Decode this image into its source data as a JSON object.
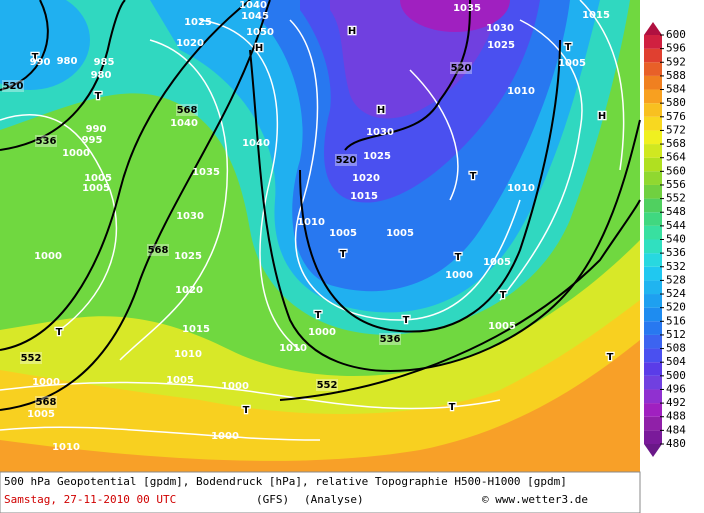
{
  "legend": {
    "ticks": [
      600,
      596,
      592,
      588,
      584,
      580,
      576,
      572,
      568,
      564,
      560,
      556,
      552,
      548,
      544,
      540,
      536,
      532,
      528,
      524,
      520,
      516,
      512,
      508,
      504,
      500,
      496,
      492,
      488,
      484,
      480
    ],
    "colors": [
      "#7a1a9a",
      "#9020a8",
      "#a020c0",
      "#9030d0",
      "#7040e0",
      "#5a3ce8",
      "#4a50f0",
      "#3c64f0",
      "#2878f0",
      "#1e8cf0",
      "#1ea0f0",
      "#20b4f0",
      "#20c8f0",
      "#28d8e0",
      "#30e0c0",
      "#38e0a0",
      "#40d880",
      "#50d060",
      "#70d040",
      "#90d830",
      "#b0e020",
      "#d0e820",
      "#f0f020",
      "#f8d820",
      "#f8c020",
      "#f8a020",
      "#f08020",
      "#e86028",
      "#e04030",
      "#d02040"
    ]
  },
  "map_labels": [
    "H",
    "H",
    "H",
    "H",
    "T",
    "T",
    "T",
    "T",
    "T",
    "T",
    "T",
    "T",
    "T",
    "T",
    "T",
    "T",
    "T",
    "520",
    "536",
    "568",
    "568",
    "520",
    "520",
    "536",
    "552",
    "552",
    "568",
    "1025",
    "1020",
    "1040",
    "1045",
    "1050",
    "980",
    "985",
    "980",
    "990",
    "990",
    "995",
    "1000",
    "1005",
    "1005",
    "1040",
    "1040",
    "1035",
    "1030",
    "1025",
    "1020",
    "1015",
    "1010",
    "1005",
    "1000",
    "1000",
    "1000",
    "1000",
    "1005",
    "1010",
    "1010",
    "1005",
    "1005",
    "1030",
    "1025",
    "1020",
    "1015",
    "1000",
    "1005",
    "1005",
    "1000",
    "1010",
    "1035",
    "1030",
    "1025",
    "1015",
    "1005",
    "1010",
    "1010"
  ],
  "caption": {
    "line1": "500 hPa Geopotential [gpdm], Bodendruck [hPa], relative Topographie H500-H1000 [gpdm]",
    "date": "Samstag, 27-11-2010  00 UTC",
    "model": "(GFS)",
    "run": "(Analyse)",
    "copyright": "© www.wetter3.de"
  }
}
